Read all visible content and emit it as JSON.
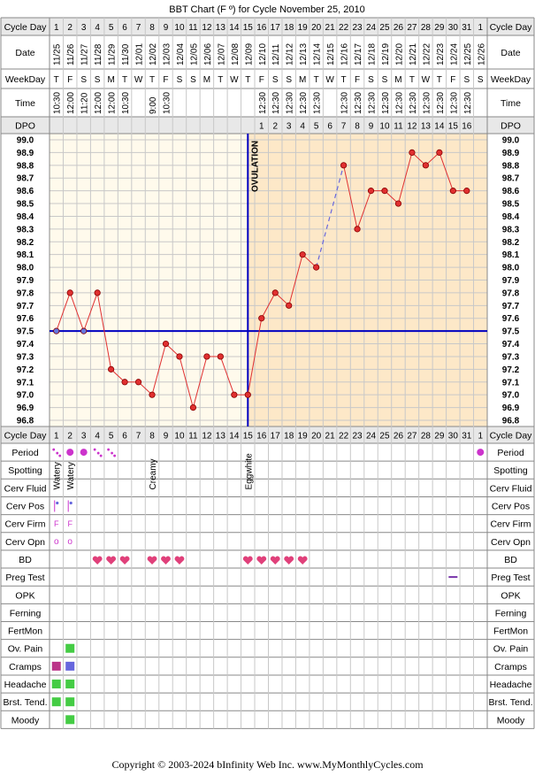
{
  "page": {
    "title": "BBT Chart (F º) for Cycle November 25, 2010",
    "footer": "Copyright © 2003-2024 bInfinity Web Inc.     www.MyMonthlyCycles.com"
  },
  "labels": {
    "cycle_day": "Cycle Day",
    "date": "Date",
    "weekday": "WeekDay",
    "time": "Time",
    "dpo": "DPO",
    "ovulation": "OVULATION"
  },
  "colors": {
    "grid": "#c8c8c8",
    "pre_bg": "#fffaec",
    "post_bg": "#fde8c8",
    "line": "#e03030",
    "point_fill": "#e03030",
    "coverline": "#0000c0",
    "ovulation_line": "#0000c0",
    "header_bg": "#e8e8e8",
    "period": "#cc33cc",
    "heart": "#e0407a",
    "green_mark": "#44cc44",
    "blue_mark": "#6666dd",
    "magenta_mark": "#bb3388"
  },
  "columns": {
    "cycle_days": [
      "1",
      "2",
      "3",
      "4",
      "5",
      "6",
      "7",
      "8",
      "9",
      "10",
      "11",
      "12",
      "13",
      "14",
      "15",
      "16",
      "17",
      "18",
      "19",
      "20",
      "21",
      "22",
      "23",
      "24",
      "25",
      "26",
      "27",
      "28",
      "29",
      "30",
      "31",
      "1"
    ],
    "dates": [
      "11/25",
      "11/26",
      "11/27",
      "11/28",
      "11/29",
      "11/30",
      "12/01",
      "12/02",
      "12/03",
      "12/04",
      "12/05",
      "12/06",
      "12/07",
      "12/08",
      "12/09",
      "12/10",
      "12/11",
      "12/12",
      "12/13",
      "12/14",
      "12/15",
      "12/16",
      "12/17",
      "12/18",
      "12/19",
      "12/20",
      "12/21",
      "12/22",
      "12/23",
      "12/24",
      "12/25",
      "12/26"
    ],
    "weekdays": [
      "T",
      "F",
      "S",
      "S",
      "M",
      "T",
      "W",
      "T",
      "F",
      "S",
      "S",
      "M",
      "T",
      "W",
      "T",
      "F",
      "S",
      "S",
      "M",
      "T",
      "W",
      "T",
      "F",
      "S",
      "S",
      "M",
      "T",
      "W",
      "T",
      "F",
      "S",
      "S"
    ],
    "times": [
      "10:30",
      "12:00",
      "11:20",
      "12:00",
      "12:00",
      "10:30",
      "",
      "9:00",
      "10:30",
      "",
      "",
      "",
      "",
      "",
      "",
      "12:30",
      "12:30",
      "12:30",
      "12:30",
      "12:30",
      "",
      "12:30",
      "12:30",
      "12:30",
      "12:30",
      "12:30",
      "12:30",
      "12:30",
      "12:30",
      "12:30",
      "12:30",
      ""
    ],
    "dpo": [
      "",
      "",
      "",
      "",
      "",
      "",
      "",
      "",
      "",
      "",
      "",
      "",
      "",
      "",
      "",
      "1",
      "2",
      "3",
      "4",
      "5",
      "6",
      "7",
      "8",
      "9",
      "10",
      "11",
      "12",
      "13",
      "14",
      "15",
      "16",
      ""
    ]
  },
  "chart_data": {
    "type": "line",
    "title": "BBT Chart (F º) for Cycle November 25, 2010",
    "x": [
      1,
      2,
      3,
      4,
      5,
      6,
      7,
      8,
      9,
      10,
      11,
      12,
      13,
      14,
      15,
      16,
      17,
      18,
      19,
      20,
      21,
      22,
      23,
      24,
      25,
      26,
      27,
      28,
      29,
      30,
      31,
      32
    ],
    "temperatures": [
      97.5,
      97.8,
      97.5,
      97.8,
      97.2,
      97.1,
      97.1,
      97.0,
      97.4,
      97.3,
      96.9,
      97.3,
      97.3,
      97.0,
      97.0,
      97.6,
      97.8,
      97.7,
      98.1,
      98.0,
      null,
      98.8,
      98.3,
      98.6,
      98.6,
      98.5,
      98.9,
      98.8,
      98.9,
      98.6,
      98.6,
      null
    ],
    "ylim": [
      96.8,
      99.0
    ],
    "y_ticks": [
      "99.0",
      "98.9",
      "98.8",
      "98.7",
      "98.6",
      "98.5",
      "98.4",
      "98.3",
      "98.2",
      "98.1",
      "98.0",
      "97.9",
      "97.8",
      "97.7",
      "97.6",
      "97.5",
      "97.4",
      "97.3",
      "97.2",
      "97.1",
      "97.0",
      "96.9",
      "96.8"
    ],
    "coverline": 97.5,
    "ovulation_day": 15,
    "open_points": [
      1,
      3
    ]
  },
  "symptoms": {
    "rows": [
      {
        "label": "Period"
      },
      {
        "label": "Spotting"
      },
      {
        "label": "Cerv Fluid"
      },
      {
        "label": "Cerv Pos"
      },
      {
        "label": "Cerv Firm"
      },
      {
        "label": "Cerv Opn"
      },
      {
        "label": "BD"
      },
      {
        "label": "Preg Test"
      },
      {
        "label": "OPK"
      },
      {
        "label": "Ferning"
      },
      {
        "label": "FertMon"
      },
      {
        "label": "Ov. Pain"
      },
      {
        "label": "Cramps"
      },
      {
        "label": "Headache"
      },
      {
        "label": "Brst. Tend."
      },
      {
        "label": "Moody"
      }
    ],
    "period": {
      "dot_days": [
        2,
        3,
        32
      ],
      "spot_days": [
        1,
        4,
        5
      ]
    },
    "cerv_fluid": [
      {
        "day": 1,
        "text": "Watery"
      },
      {
        "day": 2,
        "text": "Watery"
      },
      {
        "day": 8,
        "text": "Creamy"
      },
      {
        "day": 15,
        "text": "Eggwhite"
      }
    ],
    "cerv_pos_days": [
      1,
      2
    ],
    "cerv_firm": [
      {
        "day": 1,
        "text": "F"
      },
      {
        "day": 2,
        "text": "F"
      }
    ],
    "cerv_opn": [
      {
        "day": 1,
        "text": "o"
      },
      {
        "day": 2,
        "text": "o"
      }
    ],
    "bd_days": [
      4,
      5,
      6,
      8,
      9,
      10,
      15,
      16,
      17,
      18,
      19
    ],
    "preg_test_days": [
      30
    ],
    "ov_pain": [
      {
        "day": 2,
        "color": "green"
      }
    ],
    "cramps": [
      {
        "day": 1,
        "color": "magenta"
      },
      {
        "day": 2,
        "color": "blue"
      }
    ],
    "headache": [
      {
        "day": 1,
        "color": "green"
      },
      {
        "day": 2,
        "color": "green"
      }
    ],
    "brst_tend": [
      {
        "day": 1,
        "color": "green"
      },
      {
        "day": 2,
        "color": "green"
      }
    ],
    "moody": [
      {
        "day": 2,
        "color": "green"
      }
    ]
  }
}
